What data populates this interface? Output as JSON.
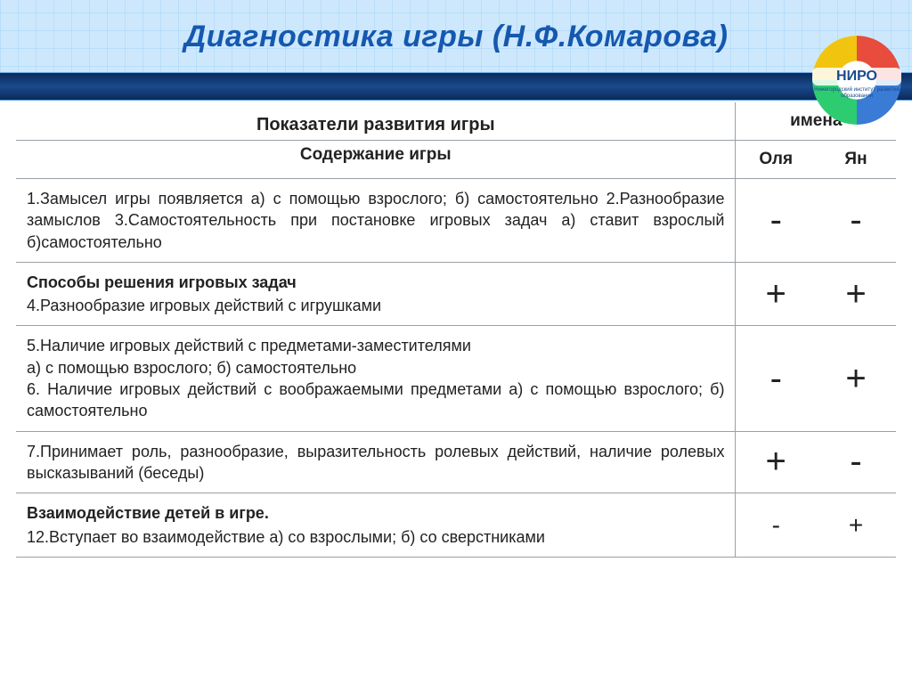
{
  "title": "Диагностика   игры     (Н.Ф.Комарова)",
  "logo": {
    "label": "НИРО",
    "sub": "Нижегородский институт развития образования"
  },
  "header": {
    "main": "Показатели  развития  игры",
    "sub": "Содержание игры",
    "names_label": "имена",
    "names": [
      "Оля",
      "Ян"
    ]
  },
  "rows": [
    {
      "heading": "",
      "text": "1.Замысел  игры появляется  а) с помощью  взрослого; б) самостоятельно 2.Разнообразие замыслов 3.Самостоятельность при постановке игровых задач а) ставит взрослый б)самостоятельно",
      "marks": [
        "-",
        "-"
      ],
      "mark_size": "big"
    },
    {
      "heading": "Способы  решения игровых задач",
      "text": "4.Разнообразие игровых действий с игрушками",
      "marks": [
        "+",
        "+"
      ],
      "mark_size": "big"
    },
    {
      "heading": "",
      "text": "5.Наличие игровых действий с предметами-заместителями\nа)  с помощью взрослого; б) самостоятельно\n6. Наличие игровых действий с воображаемыми предметами а) с помощью взрослого; б) самостоятельно",
      "marks": [
        "-",
        "+"
      ],
      "mark_size": "big"
    },
    {
      "heading": "",
      "text": "7.Принимает роль, разнообразие, выразительность ролевых действий, наличие ролевых высказываний (беседы)",
      "marks": [
        "+",
        "-"
      ],
      "mark_size": "big"
    },
    {
      "heading": "Взаимодействие  детей в игре.",
      "text": "12.Вступает во взаимодействие а) со взрослыми; б) со сверстниками",
      "marks": [
        "-",
        "+"
      ],
      "mark_size": "small"
    }
  ],
  "colors": {
    "title": "#1558b0",
    "bar_gradient": [
      "#0a2a5c",
      "#1a4a8c"
    ],
    "grid_line": "#9aa0a6",
    "header_bg": "#d8edfa"
  }
}
